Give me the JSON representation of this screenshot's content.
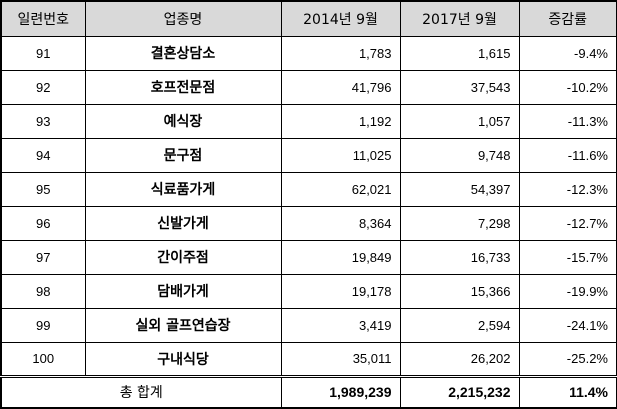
{
  "headers": {
    "no": "일련번호",
    "name": "업종명",
    "y2014": "2014년  9월",
    "y2017": "2017년  9월",
    "rate": "증감률"
  },
  "rows": [
    {
      "no": "91",
      "name": "결혼상담소",
      "v2014": "1,783",
      "v2017": "1,615",
      "rate": "-9.4%"
    },
    {
      "no": "92",
      "name": "호프전문점",
      "v2014": "41,796",
      "v2017": "37,543",
      "rate": "-10.2%"
    },
    {
      "no": "93",
      "name": "예식장",
      "v2014": "1,192",
      "v2017": "1,057",
      "rate": "-11.3%"
    },
    {
      "no": "94",
      "name": "문구점",
      "v2014": "11,025",
      "v2017": "9,748",
      "rate": "-11.6%"
    },
    {
      "no": "95",
      "name": "식료품가게",
      "v2014": "62,021",
      "v2017": "54,397",
      "rate": "-12.3%"
    },
    {
      "no": "96",
      "name": "신발가게",
      "v2014": "8,364",
      "v2017": "7,298",
      "rate": "-12.7%"
    },
    {
      "no": "97",
      "name": "간이주점",
      "v2014": "19,849",
      "v2017": "16,733",
      "rate": "-15.7%"
    },
    {
      "no": "98",
      "name": "담배가게",
      "v2014": "19,178",
      "v2017": "15,366",
      "rate": "-19.9%"
    },
    {
      "no": "99",
      "name": "실외 골프연습장",
      "v2014": "3,419",
      "v2017": "2,594",
      "rate": "-24.1%"
    },
    {
      "no": "100",
      "name": "구내식당",
      "v2014": "35,011",
      "v2017": "26,202",
      "rate": "-25.2%"
    }
  ],
  "total": {
    "label": "총  합계",
    "v2014": "1,989,239",
    "v2017": "2,215,232",
    "rate": "11.4%"
  }
}
